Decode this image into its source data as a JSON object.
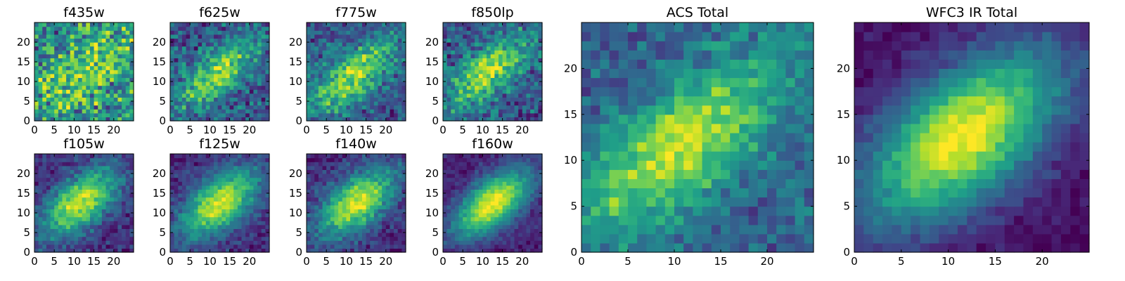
{
  "figure": {
    "background": "#ffffff",
    "colormap": "viridis",
    "colormap_stops": [
      "#440154",
      "#482878",
      "#3e4989",
      "#31688e",
      "#26828e",
      "#1f9e89",
      "#35b779",
      "#6ece58",
      "#b5de2b",
      "#fde725"
    ]
  },
  "chart_data": [
    {
      "type": "heatmap",
      "title": "f435w",
      "grid": false,
      "xlim": [
        0,
        25
      ],
      "ylim": [
        0,
        25
      ],
      "x_ticks": [
        0,
        5,
        10,
        15,
        20
      ],
      "y_ticks": [
        0,
        5,
        10,
        15,
        20
      ],
      "pixels": [
        25,
        25
      ],
      "peak": [
        12,
        12
      ],
      "sigma": [
        11.0,
        5.0
      ],
      "angle_deg": 45,
      "noise": 0.45,
      "floor": 0.55,
      "amp": 0.25,
      "seed": 11
    },
    {
      "type": "heatmap",
      "title": "f625w",
      "grid": false,
      "xlim": [
        0,
        25
      ],
      "ylim": [
        0,
        25
      ],
      "x_ticks": [
        0,
        5,
        10,
        15,
        20
      ],
      "y_ticks": [
        0,
        5,
        10,
        15,
        20
      ],
      "pixels": [
        25,
        25
      ],
      "peak": [
        11,
        11
      ],
      "sigma": [
        9.0,
        3.6
      ],
      "angle_deg": 40,
      "noise": 0.3,
      "floor": 0.3,
      "amp": 0.55,
      "seed": 23
    },
    {
      "type": "heatmap",
      "title": "f775w",
      "grid": false,
      "xlim": [
        0,
        25
      ],
      "ylim": [
        0,
        25
      ],
      "x_ticks": [
        0,
        5,
        10,
        15,
        20
      ],
      "y_ticks": [
        0,
        5,
        10,
        15,
        20
      ],
      "pixels": [
        25,
        25
      ],
      "peak": [
        11,
        11
      ],
      "sigma": [
        9.0,
        3.8
      ],
      "angle_deg": 40,
      "noise": 0.28,
      "floor": 0.3,
      "amp": 0.6,
      "seed": 37
    },
    {
      "type": "heatmap",
      "title": "f850lp",
      "grid": false,
      "xlim": [
        0,
        25
      ],
      "ylim": [
        0,
        25
      ],
      "x_ticks": [
        0,
        5,
        10,
        15,
        20
      ],
      "y_ticks": [
        0,
        5,
        10,
        15,
        20
      ],
      "pixels": [
        25,
        25
      ],
      "peak": [
        11,
        12
      ],
      "sigma": [
        9.0,
        3.8
      ],
      "angle_deg": 40,
      "noise": 0.3,
      "floor": 0.3,
      "amp": 0.6,
      "seed": 51
    },
    {
      "type": "heatmap",
      "title": "f105w",
      "grid": false,
      "xlim": [
        0,
        25
      ],
      "ylim": [
        0,
        25
      ],
      "x_ticks": [
        0,
        5,
        10,
        15,
        20
      ],
      "y_ticks": [
        0,
        5,
        10,
        15,
        20
      ],
      "pixels": [
        25,
        25
      ],
      "peak": [
        11,
        12
      ],
      "sigma": [
        8.0,
        4.2
      ],
      "angle_deg": 40,
      "noise": 0.18,
      "floor": 0.15,
      "amp": 0.8,
      "seed": 63
    },
    {
      "type": "heatmap",
      "title": "f125w",
      "grid": false,
      "xlim": [
        0,
        25
      ],
      "ylim": [
        0,
        25
      ],
      "x_ticks": [
        0,
        5,
        10,
        15,
        20
      ],
      "y_ticks": [
        0,
        5,
        10,
        15,
        20
      ],
      "pixels": [
        25,
        25
      ],
      "peak": [
        12,
        12
      ],
      "sigma": [
        8.0,
        4.2
      ],
      "angle_deg": 40,
      "noise": 0.16,
      "floor": 0.15,
      "amp": 0.8,
      "seed": 71
    },
    {
      "type": "heatmap",
      "title": "f140w",
      "grid": false,
      "xlim": [
        0,
        25
      ],
      "ylim": [
        0,
        25
      ],
      "x_ticks": [
        0,
        5,
        10,
        15,
        20
      ],
      "y_ticks": [
        0,
        5,
        10,
        15,
        20
      ],
      "pixels": [
        25,
        25
      ],
      "peak": [
        12,
        12
      ],
      "sigma": [
        8.0,
        4.2
      ],
      "angle_deg": 40,
      "noise": 0.18,
      "floor": 0.15,
      "amp": 0.8,
      "seed": 83
    },
    {
      "type": "heatmap",
      "title": "f160w",
      "grid": false,
      "xlim": [
        0,
        25
      ],
      "ylim": [
        0,
        25
      ],
      "x_ticks": [
        0,
        5,
        10,
        15,
        20
      ],
      "y_ticks": [
        0,
        5,
        10,
        15,
        20
      ],
      "pixels": [
        25,
        25
      ],
      "peak": [
        12,
        12
      ],
      "sigma": [
        8.0,
        4.0
      ],
      "angle_deg": 40,
      "noise": 0.12,
      "floor": 0.1,
      "amp": 0.9,
      "seed": 97
    },
    {
      "type": "heatmap",
      "title": "ACS Total",
      "grid": false,
      "xlim": [
        0,
        25
      ],
      "ylim": [
        0,
        25
      ],
      "x_ticks": [
        0,
        5,
        10,
        15,
        20
      ],
      "y_ticks": [
        0,
        5,
        10,
        15,
        20
      ],
      "pixels": [
        25,
        25
      ],
      "peak": [
        10,
        11
      ],
      "sigma": [
        9.5,
        3.8
      ],
      "angle_deg": 40,
      "noise": 0.2,
      "floor": 0.35,
      "amp": 0.6,
      "seed": 109
    },
    {
      "type": "heatmap",
      "title": "WFC3 IR Total",
      "grid": false,
      "xlim": [
        0,
        25
      ],
      "ylim": [
        0,
        25
      ],
      "x_ticks": [
        0,
        5,
        10,
        15,
        20
      ],
      "y_ticks": [
        0,
        5,
        10,
        15,
        20
      ],
      "pixels": [
        25,
        25
      ],
      "peak": [
        11,
        12
      ],
      "sigma": [
        8.5,
        4.5
      ],
      "angle_deg": 40,
      "noise": 0.1,
      "floor": 0.05,
      "amp": 0.95,
      "seed": 127
    }
  ]
}
